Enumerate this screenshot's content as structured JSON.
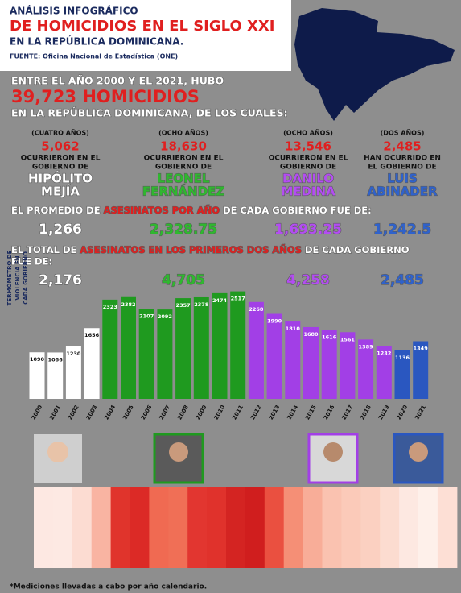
{
  "header": {
    "kicker": "ANÁLISIS INFOGRÁFICO",
    "title": "DE HOMICIDIOS EN EL SIGLO XXI",
    "line": "EN LA REPÚBLICA DOMINICANA.",
    "source": "FUENTE: Oficina Nacional de Estadística (ONE)"
  },
  "intro": {
    "line1": "ENTRE EL AÑO 2000 Y EL 2021, HUBO",
    "total": "39,723 HOMICIDIOS",
    "line2": "EN LA REPÚBLICA DOMINICANA, DE LOS CUALES:"
  },
  "governments": [
    {
      "period": "(CUATRO AÑOS)",
      "total": "5,062",
      "text": [
        "OCURRIERON EN EL",
        "GOBIERNO DE"
      ],
      "name": [
        "HIPÓLITO",
        "MEJÍA"
      ],
      "average": "1,266",
      "first_two": "2,176",
      "color": "#ffffff"
    },
    {
      "period": "(OCHO AÑOS)",
      "total": "18,630",
      "text": [
        "OCURRIERON EN EL",
        "GOBIERNO DE"
      ],
      "name": [
        "LEONEL",
        "FERNÁNDEZ"
      ],
      "average": "2,328.75",
      "first_two": "4,705",
      "color": "#2fb82f"
    },
    {
      "period": "(OCHO AÑOS)",
      "total": "13,546",
      "text": [
        "OCURRIERON EN EL",
        "GOBIERNO DE"
      ],
      "name": [
        "DANILO",
        "MEDINA"
      ],
      "average": "1,693.25",
      "first_two": "4,258",
      "color": "#b34df2"
    },
    {
      "period": "(DOS AÑOS)",
      "total": "2,485",
      "text": [
        "HAN OCURRIDO EN",
        "EL GOBIERNO DE"
      ],
      "name": [
        "LUIS",
        "ABINADER"
      ],
      "average": "1,242.5",
      "first_two": "2,485",
      "color": "#2f62cc"
    }
  ],
  "average_heading": [
    "EL PROMEDIO DE ",
    "ASESINATOS POR AÑO",
    " DE CADA GOBIERNO FUE DE:"
  ],
  "total_heading": [
    "EL TOTAL DE ",
    "ASESINATOS EN LOS PRIMEROS DOS AÑOS",
    " DE CADA GOBIERNO",
    "FUE DE:"
  ],
  "chart_data": {
    "type": "bar",
    "categories": [
      "2000",
      "2001",
      "2002",
      "2003",
      "2004",
      "2005",
      "2006",
      "2007",
      "2008",
      "2009",
      "2010",
      "2011",
      "2012",
      "2013",
      "2014",
      "2015",
      "2016",
      "2017",
      "2018",
      "2019",
      "2020",
      "2021"
    ],
    "values": [
      1090,
      1086,
      1230,
      1656,
      2323,
      2382,
      2107,
      2092,
      2357,
      2378,
      2474,
      2517,
      2268,
      1990,
      1810,
      1680,
      1616,
      1561,
      1389,
      1232,
      1136,
      1349
    ],
    "colors": [
      "#ffffff",
      "#ffffff",
      "#ffffff",
      "#ffffff",
      "#1f9a1f",
      "#1f9a1f",
      "#1f9a1f",
      "#1f9a1f",
      "#1f9a1f",
      "#1f9a1f",
      "#1f9a1f",
      "#1f9a1f",
      "#a23fe6",
      "#a23fe6",
      "#a23fe6",
      "#a23fe6",
      "#a23fe6",
      "#a23fe6",
      "#a23fe6",
      "#a23fe6",
      "#2a57c0",
      "#2a57c0"
    ],
    "heatmap_colors": [
      "#fde8e2",
      "#fde9e3",
      "#fcdcd2",
      "#f9b4a2",
      "#e0342c",
      "#dc2a26",
      "#f06a52",
      "#f06f56",
      "#e23630",
      "#e0322c",
      "#d42422",
      "#d01e1e",
      "#ea5040",
      "#f58f76",
      "#f8ad98",
      "#fac2b0",
      "#fbcab9",
      "#fbd0c1",
      "#fcdcd0",
      "#fde8e1",
      "#fef0ea",
      "#fddfd5"
    ],
    "heatmap_label": [
      "TERMÓMETRO DE",
      "VIOLENCIA EN",
      "CADA GOBIERNO"
    ]
  },
  "footnote": "*Mediciones llevadas a cabo por año calendario."
}
